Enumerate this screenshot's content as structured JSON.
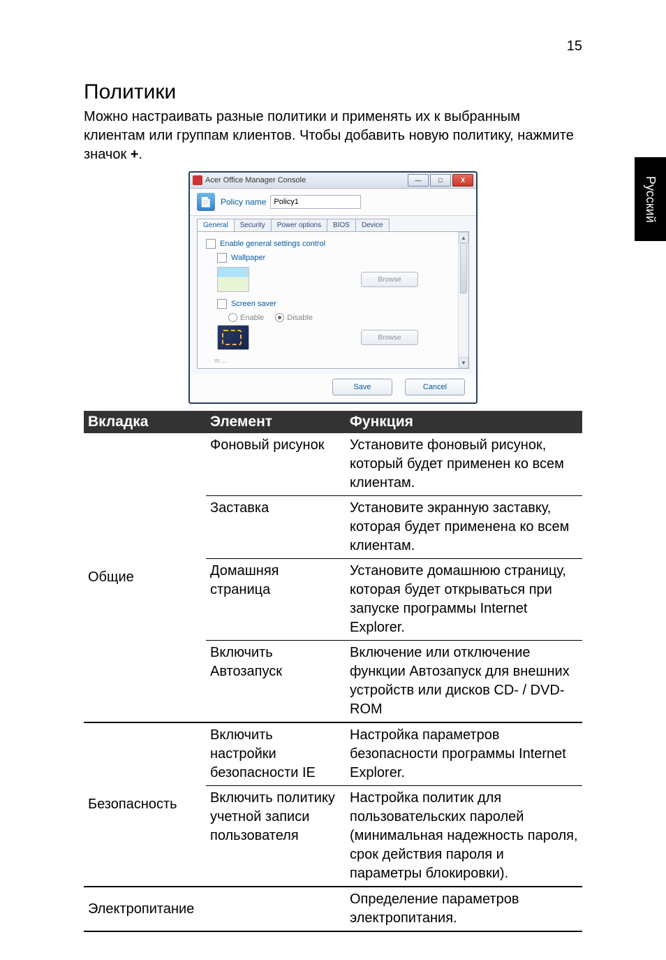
{
  "page_number": "15",
  "side_tab": "Русский",
  "section_title": "Политики",
  "intro_text": "Можно настраивать разные политики и применять их к выбранным клиентам или группам клиентов. Чтобы добавить новую политику, нажмите значок ",
  "intro_plus": "+",
  "intro_period": ".",
  "screenshot": {
    "window_title": "Acer Office Manager Console",
    "policy_name_label": "Policy name",
    "policy_name_value": "Policy1",
    "tabs": [
      "General",
      "Security",
      "Power options",
      "BIOS",
      "Device"
    ],
    "enable_general_label": "Enable general settings control",
    "wallpaper_label": "Wallpaper",
    "browse_label1": "Browse",
    "screen_saver_label": "Screen saver",
    "enable_label": "Enable",
    "disable_label": "Disable",
    "browse_label2": "Browse",
    "save_label": "Save",
    "cancel_label": "Cancel",
    "min_symbol": "—",
    "max_symbol": "□",
    "close_symbol": "X",
    "up_arrow": "▲",
    "down_arrow": "▼",
    "ellipsis_text": "m ..."
  },
  "table": {
    "headers": {
      "tab": "Вкладка",
      "element": "Элемент",
      "func": "Функция"
    },
    "groups": [
      {
        "tab": "Общие",
        "rows": [
          {
            "element": "Фоновый рисунок",
            "func": "Установите фоновый рисунок, который будет применен ко всем клиентам."
          },
          {
            "element": "Заставка",
            "func": "Установите экранную заставку, которая будет применена ко всем клиентам."
          },
          {
            "element": "Домашняя страница",
            "func": "Установите домашнюю страницу, которая будет открываться при запуске программы Internet Explorer."
          },
          {
            "element": "Включить Автозапуск",
            "func": "Включение или отключение функции Автозапуск для внешних устройств или дисков CD- / DVD-ROM"
          }
        ]
      },
      {
        "tab": "Безопасность",
        "rows": [
          {
            "element": "Включить настройки безопасности IE",
            "func": "Настройка параметров безопасности программы Internet Explorer."
          },
          {
            "element": "Включить политику учетной записи пользователя",
            "func": "Настройка политик для пользовательских паролей (минимальная надежность пароля, срок действия пароля и параметры блокировки)."
          }
        ]
      },
      {
        "tab": "Электропитание",
        "rows": [
          {
            "element": "",
            "func": "Определение параметров электропитания."
          }
        ]
      }
    ]
  }
}
